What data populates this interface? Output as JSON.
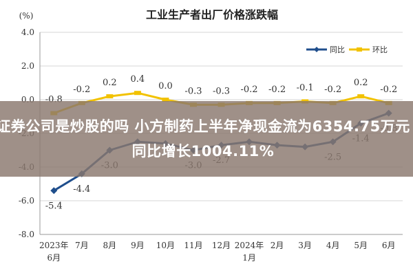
{
  "chart_data": {
    "type": "line",
    "title": "工业生产者出厂价格涨跌幅",
    "ylabel": "(%)",
    "categories": [
      "2023年\n6月",
      "7月",
      "8月",
      "9月",
      "10月",
      "11月",
      "12月",
      "2024年\n1月",
      "2月",
      "3月",
      "4月",
      "5月",
      "6月"
    ],
    "series": [
      {
        "name": "同比",
        "color": "#1f4e8c",
        "values": [
          -5.4,
          -4.4,
          -3.0,
          -2.5,
          -2.6,
          -3.0,
          -2.7,
          -2.5,
          -2.7,
          -2.8,
          -2.5,
          -1.4,
          -0.8
        ],
        "labels": [
          "-5.4",
          "-4.4",
          "-3.0",
          "",
          "",
          "-3.0",
          "-2.7",
          "",
          "",
          "",
          "-2.5",
          "-1.4",
          "-0.8"
        ]
      },
      {
        "name": "环比",
        "color": "#f2c200",
        "values": [
          -0.8,
          -0.2,
          0.2,
          0.4,
          0.0,
          -0.3,
          -0.3,
          -0.2,
          -0.2,
          -0.1,
          -0.2,
          0.2,
          -0.2
        ],
        "labels": [
          "-0.8",
          "-0.2",
          "0.2",
          "0.4",
          "0.0",
          "-0.3",
          "-0.3",
          "-0.2",
          "-0.2",
          "-0.1",
          "-0.2",
          "0.2",
          "-0.2"
        ]
      }
    ],
    "ylim": [
      -8.0,
      4.0
    ],
    "yticks": [
      "4.0",
      "2.0",
      "0.0",
      "-2.0",
      "-4.0",
      "-6.0",
      "-8.0"
    ],
    "grid": true,
    "legend": "top-right"
  },
  "banner": {
    "text": "证券公司是炒股的吗 小方制药上半年净现金流为6354.75万元同比增长1004.11%"
  }
}
